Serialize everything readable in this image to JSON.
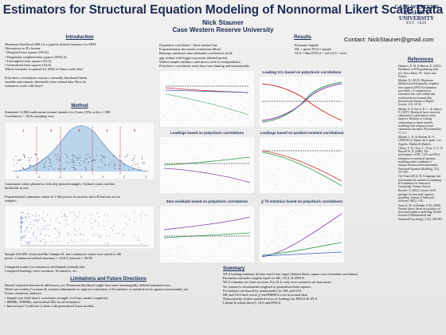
{
  "header": {
    "title": "Estimators for Structural Equation Modeling of Nonnormal Likert Scale Data",
    "author": "Nick Stauner",
    "affiliation": "Case Western Reserve University",
    "contact": "Contact: NickStauner@gmail.com",
    "logo_line1": "CASE WESTERN RESERVE",
    "logo_line2": "UNIVERSITY",
    "logo_line3": "EST. 1826"
  },
  "introduction": {
    "heading": "Introduction",
    "lines": [
      "Maximum likelihood (ML) is a popular default estimator for SEM.",
      "Alternatives in R's lavaan:",
      "   •  Weighted least squares (WLS)",
      "   •  Diagonally weighted least squares (DWLS)",
      "   •  Unweighted least squares (ULS)",
      "   •  Generalized least squares (GLS)",
      "Which estimator is optimal for SEM of Likert scale data?",
      "",
      "Polychoric correlations assume a normally distributed latent",
      "variable and estimate thresholds from ordinal data. How do",
      "estimators work with these?"
    ]
  },
  "method": {
    "heading": "Method",
    "lines_top": [
      "Simulated 10,000 multivariate normal datasets for 3-item CFAs with n = 980.",
      "Correlations = .9§ & sampling error."
    ],
    "lines_mid": [
      "Continuous values plotted as vertically jittered triangles.  Ordinal counts and line",
      "thresholds in red.",
      "",
      "Exponentiated continuous values to 1-4th powers to increase skew & kurtosis across",
      "samples:"
    ],
    "lines_bottom": [
      "Sample #10,000: Generated like Sample #1, but continuous values were raised to 4th",
      "power. Continuous/ordinal skewness = 4.5/6.5, kurtosis = 35/36",
      "",
      "Compared results for continuous and binned (ordinal) data",
      "Compared loadings, error variances, fit statistics, etc."
    ],
    "hist_axis": [
      "-3",
      "-2",
      "-1",
      "0",
      "1",
      "2",
      "3"
    ],
    "hist_counts": [
      "1",
      "2",
      "3",
      "4",
      "5"
    ]
  },
  "limitations": {
    "heading": "Limitations and Future Directions",
    "lines": [
      "Haven't explored theoretical differences yet. Maximum likelihood might have more meaningfully defined standard errors.",
      "Didn't use scaled χ² or mean & variance adjustments to improve robustness of fit statistics or standard errors against nonnormality yet.",
      "Future sensitivity analyses:",
      "   •  Sample size (half-done), correlation strength, # of bins, model complexity",
      "   •  SRMRs, WRMRs, and residual SEs for all estimators",
      "   •  Interactions? Could test to them with generalized linear models..."
    ]
  },
  "results": {
    "heading": "Results",
    "estimator_legend_title": "Estimator legend:",
    "estimator_legend": [
      "ML = green        WLS = purple",
      "ULS = blue        DWLS = red        GLS = olive"
    ],
    "notes": [
      "Population correlation = black dashed line",
      "Exponentiation decreased correlations (blue)",
      "Binning continuous data attenuates correlations (red);",
      "  gap widens with bigger exponents (dashed green).",
      "Within-sample median rs and skews used for independence.",
      "Polychoric correlations resist bias from binning and nonnormality."
    ]
  },
  "charts": {
    "polychoric": "Loading 1Cs based on polychoric correlations",
    "loadings_poly": "Loadings based on polychoric correlations",
    "loadings_pm": "Loadings based on product-moment correlations",
    "item_residuals": "Item residuals based on polychoric correlations",
    "chi2_fit": "χ² fit statistics based on polychoric correlations"
  },
  "summary": {
    "heading": "Summary",
    "lines": [
      "WLS loading estimates deviate most from target (dashed black, square root of median correlation).",
      "Parameter estimates roughly equal for ML, ULS, & DWLS.",
      "WLS estimates are least accurate. For GLS, only error variances are inaccurate.",
      "No reasons to recommend weighted or generalized least squares.",
      "Fit statistics are biased by nonnormality for ML and GLS.",
      "ML and GLS have worse χ² and RMSEA even in normal data.",
      "Nonnormality widens standard errors of loadings for DWLS & WLS",
      "Liberal & robust (best?): ULS and DWLS."
    ]
  },
  "references": {
    "heading": "References",
    "items": [
      "Dimitrov, D. M. & Hutson, E. (2012). Handbook of R Programming (2nd ed.). Boca Raton, FL: Taylor and Francis.",
      "Muthén, B. (2010). Maximum likelihood and diagonally weighted least squares (DWLS) estimation procedures: A comparison of estimation bias with ordinal and multivariate non-normal data. International Journal of Digital Society, 1(1), 20-30.",
      "Mulder, E. & Van. S. R. C., & Spence, D. (1997). Retrieved factor structure validation of confirmatory factor analyses: Relation of rotating relationships to latent variable modeling with categorical and continuous outcomes. Psychometrika, 71, 5-1.",
      "Muthén, L. K. & Muthén, B. O. (1998-2012). Mplus user's guide. Los Angeles, Muthén & Muthén.",
      "Olsson, U. H., Foss, T., Troye, S. V., & Howell, R. D. (2000). The performance of ML, GLS, and WLS estimation in structural equation modeling under conditions of misspecification and nonnormality. Structural Equation Modeling, 7(4), 557-595.",
      "Ory Team (2014). R: A language and environment for statistical computing. R Foundation for Statistical Computing, Vienna, Austria.",
      "Rosseel, Y. (2012). lavaan: An R package for structural equation modeling. Journal of Statistical Software, 48(2), 1-36.",
      "Yuan, K.-H., & Bentler, P. M. (1998). Normal theory based test statistics in structural equation modelling. British Journal of Mathematical and Statistical Psychology, 51(2), 289-309."
    ]
  }
}
